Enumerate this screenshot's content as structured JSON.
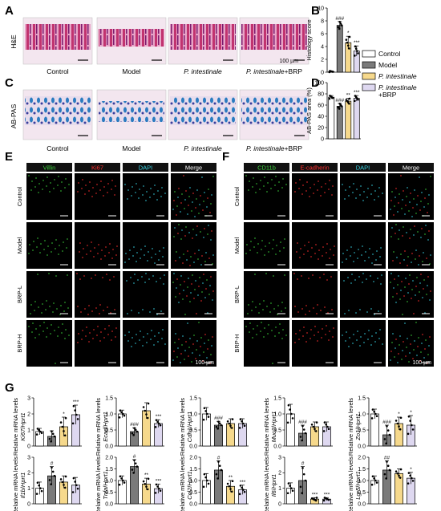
{
  "panel_labels": [
    "A",
    "B",
    "C",
    "D",
    "E",
    "F",
    "G"
  ],
  "groups": [
    "Control",
    "Model",
    "P. intestinale",
    "P. intestinale+BRP"
  ],
  "group_colors": [
    "#ffffff",
    "#7a7a7a",
    "#f6d98c",
    "#ded8f0"
  ],
  "legend": [
    "Control",
    "Model",
    "P. intestinale",
    "P. intestinale\n+BRP"
  ],
  "row_a": {
    "stain": "H&E",
    "scale": "100 µm",
    "captions": [
      "Control",
      "Model",
      "P. intestinale",
      "P. intestinale+BRP"
    ]
  },
  "row_c": {
    "stain": "AB-PAS",
    "captions": [
      "Control",
      "Model",
      "P. intestinale",
      "P. intestinale+BRP"
    ]
  },
  "panel_e": {
    "channels": [
      "Villin",
      "Ki67",
      "DAPI",
      "Merge"
    ],
    "channel_colors": [
      "#3cd23c",
      "#ff3030",
      "#38d4e4",
      "#ffffff"
    ],
    "rows": [
      "Control",
      "Model",
      "BRP-L",
      "BRP-H"
    ],
    "scale": "100 µm"
  },
  "panel_f": {
    "channels": [
      "CD11b",
      "E-cadherin",
      "DAPI",
      "Merge"
    ],
    "channel_colors": [
      "#3cd23c",
      "#ff3030",
      "#38d4e4",
      "#ffffff"
    ],
    "rows": [
      "Control",
      "Model",
      "BRP-L",
      "BRP-H"
    ],
    "scale": "100 µm"
  },
  "chart_data": [
    {
      "id": "B",
      "type": "bar",
      "ylabel": "Histology score",
      "ylim": [
        0,
        10
      ],
      "yticks": [
        0,
        2,
        4,
        6,
        8,
        10
      ],
      "categories": [
        "Control",
        "Model",
        "P. intestinale",
        "P. intestinale+BRP"
      ],
      "values": [
        0.1,
        7.3,
        4.6,
        3.3
      ],
      "errors": [
        0.1,
        0.6,
        1.0,
        0.8
      ],
      "stars": [
        "",
        "###",
        "*",
        "***"
      ]
    },
    {
      "id": "D",
      "type": "bar",
      "ylabel": "AB-PAS area (%)",
      "ylim": [
        0,
        100
      ],
      "yticks": [
        0,
        20,
        40,
        60,
        80,
        100
      ],
      "categories": [
        "Control",
        "Model",
        "P. intestinale",
        "P. intestinale+BRP"
      ],
      "values": [
        74,
        58,
        67,
        72
      ],
      "errors": [
        3,
        5,
        5,
        5
      ],
      "stars": [
        "",
        "###",
        "**",
        "***"
      ]
    },
    {
      "id": "G1",
      "type": "bar",
      "gene": "Ki67",
      "ylabel": "Relative mRNA levels",
      "ylim": [
        0,
        3
      ],
      "yticks": [
        0,
        1,
        2,
        3
      ],
      "values": [
        0.9,
        0.6,
        1.2,
        1.95
      ],
      "errors": [
        0.2,
        0.35,
        0.6,
        0.6
      ],
      "stars": [
        "",
        "",
        "*",
        "***"
      ]
    },
    {
      "id": "G2",
      "type": "bar",
      "gene": "Ecad",
      "ylabel": "Relative mRNA levels",
      "ylim": [
        0,
        1.5
      ],
      "yticks": [
        0,
        0.5,
        1.0,
        1.5
      ],
      "values": [
        1.0,
        0.45,
        1.1,
        0.7
      ],
      "errors": [
        0.12,
        0.12,
        0.25,
        0.12
      ],
      "stars": [
        "",
        "###",
        "",
        "***"
      ]
    },
    {
      "id": "G3",
      "type": "bar",
      "gene": "Cdh1",
      "ylabel": "Relative mRNA levels",
      "ylim": [
        0,
        1.5
      ],
      "yticks": [
        0,
        0.5,
        1.0,
        1.5
      ],
      "values": [
        1.0,
        0.65,
        0.7,
        0.7
      ],
      "errors": [
        0.2,
        0.12,
        0.15,
        0.15
      ],
      "stars": [
        "",
        "###",
        "",
        ""
      ]
    },
    {
      "id": "G4",
      "type": "bar",
      "gene": "Muc2",
      "ylabel": "Relative mRNA levels",
      "ylim": [
        0,
        1.5
      ],
      "yticks": [
        0,
        0.5,
        1.0,
        1.5
      ],
      "values": [
        1.0,
        0.4,
        0.6,
        0.6
      ],
      "errors": [
        0.3,
        0.25,
        0.15,
        0.15
      ],
      "stars": [
        "",
        "###",
        "",
        ""
      ]
    },
    {
      "id": "G5",
      "type": "bar",
      "gene": "Zo1",
      "ylabel": "Relative mRNA levels",
      "ylim": [
        0,
        1.5
      ],
      "yticks": [
        0,
        0.5,
        1.0,
        1.5
      ],
      "values": [
        1.0,
        0.35,
        0.7,
        0.65
      ],
      "errors": [
        0.15,
        0.3,
        0.2,
        0.3
      ],
      "stars": [
        "",
        "###",
        "*",
        "*"
      ]
    },
    {
      "id": "G6",
      "type": "bar",
      "gene": "Il1b",
      "ylabel": "Relative mRNA levels",
      "ylim": [
        0,
        3
      ],
      "yticks": [
        0,
        1,
        2,
        3
      ],
      "values": [
        1.0,
        1.8,
        1.4,
        1.2
      ],
      "errors": [
        0.4,
        0.6,
        0.4,
        0.5
      ],
      "stars": [
        "",
        "#",
        "",
        ""
      ]
    },
    {
      "id": "G7",
      "type": "bar",
      "gene": "Tnfa",
      "ylabel": "Relative mRNA levels",
      "ylim": [
        0,
        2
      ],
      "yticks": [
        0,
        0.5,
        1.0,
        1.5,
        2.0
      ],
      "values": [
        1.0,
        1.6,
        0.85,
        0.65
      ],
      "errors": [
        0.2,
        0.3,
        0.25,
        0.2
      ],
      "stars": [
        "",
        "#",
        "**",
        "***"
      ]
    },
    {
      "id": "G8",
      "type": "bar",
      "gene": "Ccl2",
      "ylabel": "Relative mRNA levels",
      "ylim": [
        0,
        2
      ],
      "yticks": [
        0,
        0.5,
        1.0,
        1.5,
        2.0
      ],
      "values": [
        1.0,
        1.45,
        0.75,
        0.6
      ],
      "errors": [
        0.3,
        0.4,
        0.25,
        0.2
      ],
      "stars": [
        "",
        "#",
        "**",
        "***"
      ]
    },
    {
      "id": "G9",
      "type": "bar",
      "gene": "Il6",
      "ylabel": "Relative mRNA levels",
      "ylim": [
        0,
        3
      ],
      "yticks": [
        0,
        1,
        2,
        3
      ],
      "values": [
        1.0,
        1.5,
        0.3,
        0.3
      ],
      "errors": [
        0.35,
        0.9,
        0.1,
        0.1
      ],
      "stars": [
        "",
        "#",
        "***",
        "***"
      ]
    },
    {
      "id": "G10",
      "type": "bar",
      "gene": "Lgr5",
      "ylabel": "Relative mRNA levels",
      "ylim": [
        0,
        2
      ],
      "yticks": [
        0,
        0.5,
        1.0,
        1.5,
        2.0
      ],
      "values": [
        1.0,
        1.45,
        1.3,
        1.1
      ],
      "errors": [
        0.2,
        0.4,
        0.2,
        0.25
      ],
      "stars": [
        "",
        "##",
        "",
        "*"
      ]
    }
  ]
}
